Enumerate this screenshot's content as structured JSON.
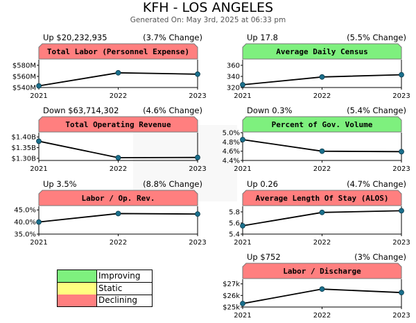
{
  "header": {
    "title": "KFH - LOS ANGELES",
    "subtitle": "Generated On: May 3rd, 2025 at 06:33 pm"
  },
  "colors": {
    "improving": "#7ef07e",
    "static": "#ffff80",
    "declining": "#ff7f7f",
    "line": "#000000",
    "point": "#1a6f8c"
  },
  "legend": [
    {
      "label": "Improving",
      "color": "#7ef07e"
    },
    {
      "label": "Static",
      "color": "#ffff80"
    },
    {
      "label": "Declining",
      "color": "#ff7f7f"
    }
  ],
  "chart_data": [
    {
      "type": "line",
      "title": "Total Labor (Personnel Expense)",
      "status": "declining",
      "change_left": "Up $20,232,935",
      "change_right": "(3.7% Change)",
      "x": [
        "2021",
        "2022",
        "2023"
      ],
      "values": [
        543000000,
        566500000,
        564000000
      ],
      "ylim": [
        540000000,
        590000000
      ],
      "yticks": [
        540000000,
        560000000,
        580000000
      ],
      "ytick_labels": [
        "$540M",
        "$560M",
        "$580M"
      ]
    },
    {
      "type": "line",
      "title": "Average Daily Census",
      "status": "improving",
      "change_left": "Up 17.8",
      "change_right": "(5.5% Change)",
      "x": [
        "2021",
        "2022",
        "2023"
      ],
      "values": [
        325,
        339,
        343
      ],
      "ylim": [
        320,
        370
      ],
      "yticks": [
        320,
        340,
        360
      ],
      "ytick_labels": [
        "320",
        "340",
        "360"
      ]
    },
    {
      "type": "line",
      "title": "Total Operating Revenue",
      "status": "declining",
      "change_left": "Down $63,714,302",
      "change_right": "(4.6% Change)",
      "x": [
        "2021",
        "2022",
        "2023"
      ],
      "values": [
        1380000000,
        1303000000,
        1304000000
      ],
      "ylim": [
        1290000000,
        1420000000
      ],
      "yticks": [
        1300000000,
        1350000000,
        1400000000
      ],
      "ytick_labels": [
        "$1.30B",
        "$1.35B",
        "$1.40B"
      ]
    },
    {
      "type": "line",
      "title": "Percent of Gov. Volume",
      "status": "improving",
      "change_left": "Down 0.3%",
      "change_right": "(5.4% Change)",
      "x": [
        "2021",
        "2022",
        "2023"
      ],
      "values": [
        4.85,
        4.6,
        4.59
      ],
      "ylim": [
        4.4,
        5.0
      ],
      "yticks": [
        4.4,
        4.6,
        4.8,
        5.0
      ],
      "ytick_labels": [
        "4.4%",
        "4.6%",
        "4.8%",
        "5.0%"
      ]
    },
    {
      "type": "line",
      "title": "Labor / Op. Rev.",
      "status": "declining",
      "change_left": "Up 3.5%",
      "change_right": "(8.8% Change)",
      "x": [
        "2021",
        "2022",
        "2023"
      ],
      "values": [
        40.0,
        43.5,
        43.3
      ],
      "ylim": [
        35.0,
        46.5
      ],
      "yticks": [
        35.0,
        40.0,
        45.0
      ],
      "ytick_labels": [
        "35.0%",
        "40.0%",
        "45.0%"
      ]
    },
    {
      "type": "line",
      "title": "Average Length Of Stay (ALOS)",
      "status": "declining",
      "change_left": "Up 0.26",
      "change_right": "(4.7% Change)",
      "x": [
        "2021",
        "2022",
        "2023"
      ],
      "values": [
        5.55,
        5.79,
        5.82
      ],
      "ylim": [
        5.4,
        5.9
      ],
      "yticks": [
        5.4,
        5.6,
        5.8
      ],
      "ytick_labels": [
        "5.4",
        "5.6",
        "5.8"
      ]
    },
    {
      "type": "line",
      "title": "Labor / Discharge",
      "status": "declining",
      "change_left": "Up $752",
      "change_right": "(3% Change)",
      "x": [
        "2021",
        "2022",
        "2023"
      ],
      "values": [
        25300,
        26550,
        26250
      ],
      "ylim": [
        25000,
        27400
      ],
      "yticks": [
        25000,
        26000,
        27000
      ],
      "ytick_labels": [
        "$25k",
        "$26k",
        "$27k"
      ]
    }
  ]
}
